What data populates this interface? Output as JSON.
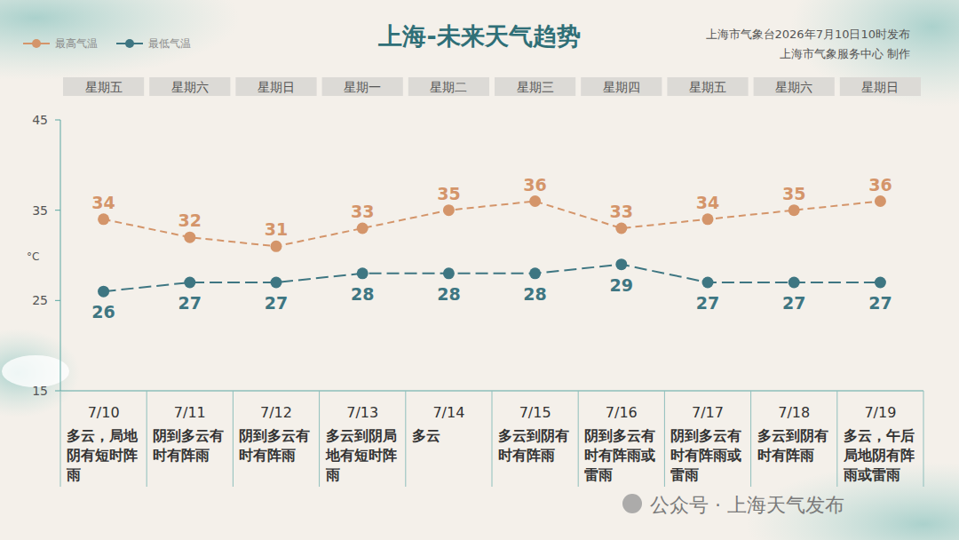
{
  "chart_data": {
    "type": "line",
    "title": "上海-未来天气趋势",
    "publisher": [
      "上海市气象台2026年7月10日10时发布",
      "上海市气象服务中心 制作"
    ],
    "weekdays": [
      "星期五",
      "星期六",
      "星期日",
      "星期一",
      "星期二",
      "星期三",
      "星期四",
      "星期五",
      "星期六",
      "星期日"
    ],
    "categories": [
      "7/10",
      "7/11",
      "7/12",
      "7/13",
      "7/14",
      "7/15",
      "7/16",
      "7/17",
      "7/18",
      "7/19"
    ],
    "weather": [
      "多云，局地阴有短时阵雨",
      "阴到多云有时有阵雨",
      "阴到多云有时有阵雨",
      "多云到阴局地有短时阵雨",
      "多云",
      "多云到阴有时有阵雨",
      "阴到多云有时有阵雨或雷雨",
      "阴到多云有时有阵雨或雷雨",
      "多云到阴有时有阵雨",
      "多云，午后局地阴有阵雨或雷雨"
    ],
    "y_label": "°C",
    "ylim": [
      15,
      45
    ],
    "yticks": [
      15,
      25,
      35,
      45
    ],
    "grid": false,
    "legend": "upper left",
    "data_labels": true,
    "series": [
      {
        "name": "最高气温",
        "color": "#d4956a",
        "marker": "circle",
        "line_style": "dashed",
        "values": [
          34,
          32,
          31,
          33,
          35,
          36,
          33,
          34,
          35,
          36
        ]
      },
      {
        "name": "最低气温",
        "color": "#3e7682",
        "marker": "circle",
        "line_style": "dashed",
        "values": [
          26,
          27,
          27,
          28,
          28,
          28,
          29,
          27,
          27,
          27
        ]
      }
    ],
    "watermark": "公众号 · 上海天气发布"
  }
}
